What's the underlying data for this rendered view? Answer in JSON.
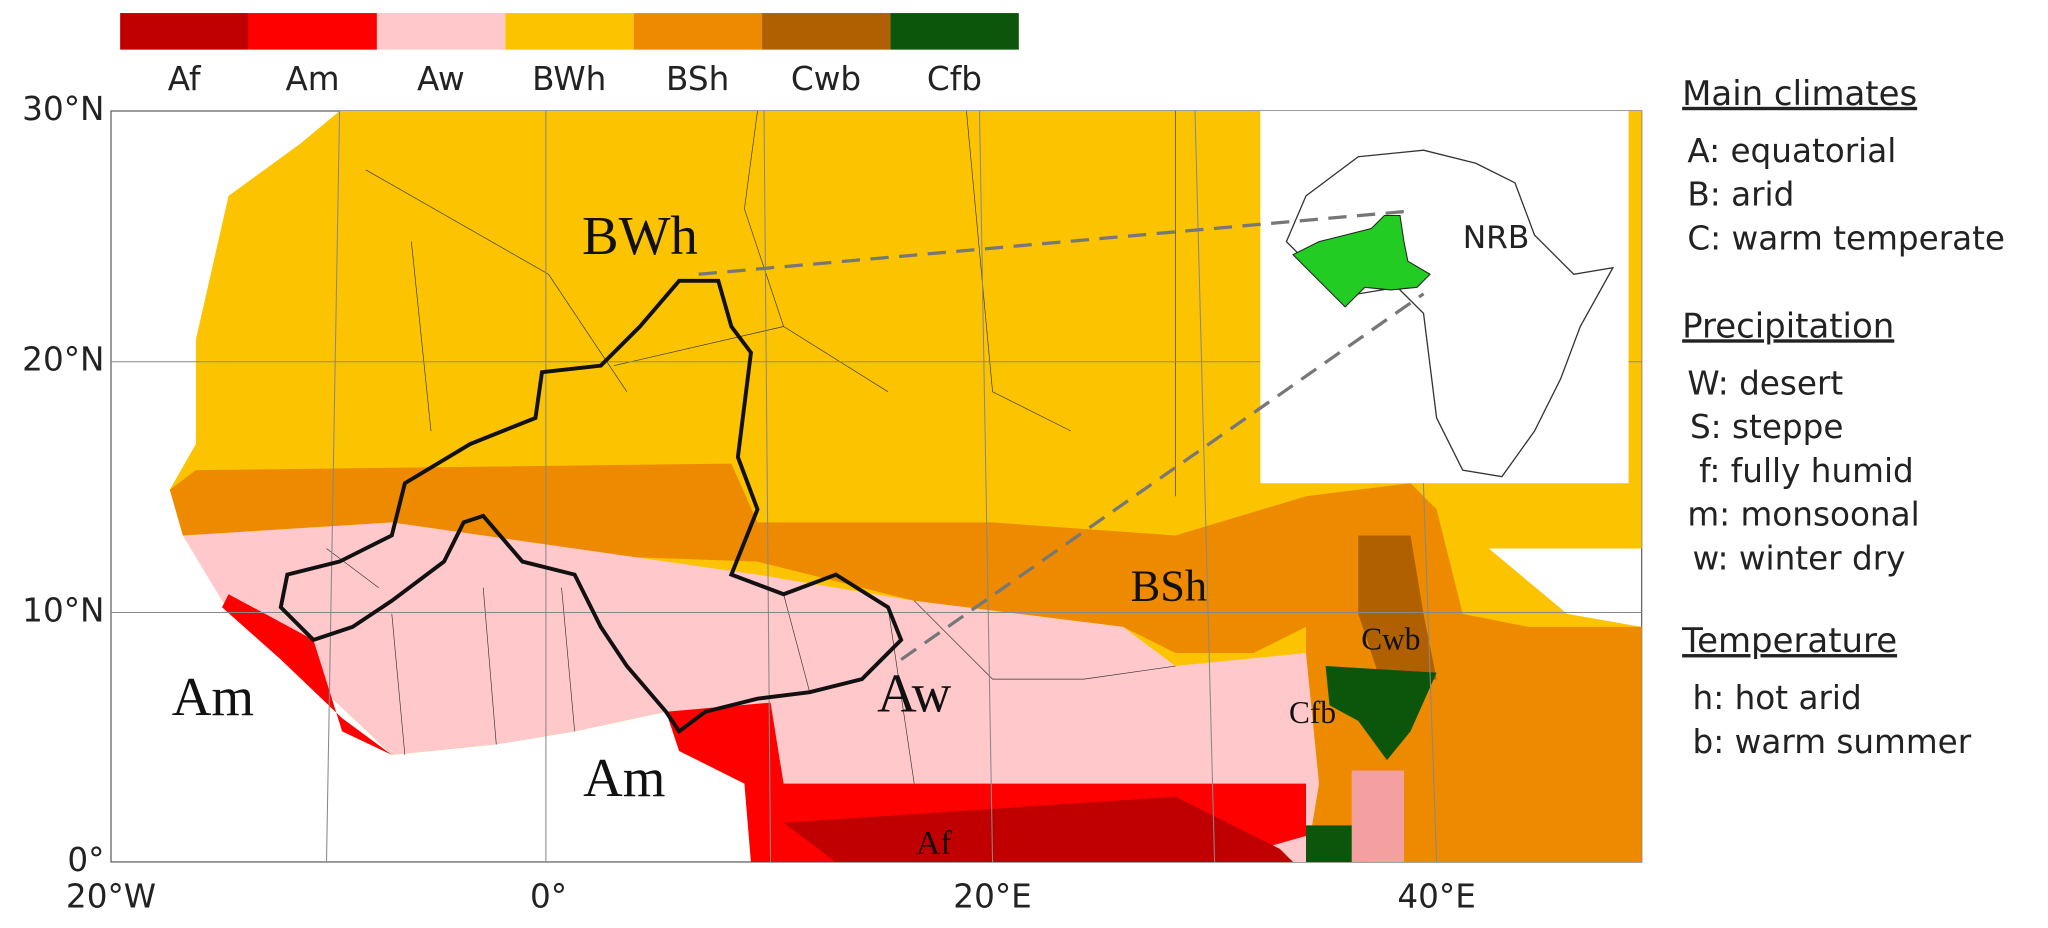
{
  "legend": {
    "items": [
      {
        "label": "Af",
        "color": "#c00000"
      },
      {
        "label": "Am",
        "color": "#ff0000"
      },
      {
        "label": "Aw",
        "color": "#ffc8cb"
      },
      {
        "label": "BWh",
        "color": "#fcc400"
      },
      {
        "label": "BSh",
        "color": "#ee8a00"
      },
      {
        "label": "Cwb",
        "color": "#b06000"
      },
      {
        "label": "Cfb",
        "color": "#0b560b"
      }
    ]
  },
  "axes": {
    "lat_labels": [
      "30°N",
      "20°N",
      "10°N",
      "0°"
    ],
    "lon_labels": [
      "20°W",
      "0°",
      "20°E",
      "40°E"
    ]
  },
  "map_labels": [
    "BWh",
    "BSh",
    "Aw",
    "Am",
    "Am",
    "Af",
    "Cwb",
    "Cfb"
  ],
  "inset": {
    "label": "NRB",
    "basin_color": "#22cc22"
  },
  "key": {
    "sections": [
      {
        "title": "Main climates",
        "items": [
          "A: equatorial",
          "B: arid",
          "C: warm temperate"
        ]
      },
      {
        "title": "Precipitation",
        "items": [
          "W: desert",
          "S: steppe",
          "f: fully humid",
          "m: monsoonal",
          "w: winter dry"
        ]
      },
      {
        "title": "Temperature",
        "items": [
          "h: hot arid",
          "b: warm summer"
        ]
      }
    ]
  }
}
